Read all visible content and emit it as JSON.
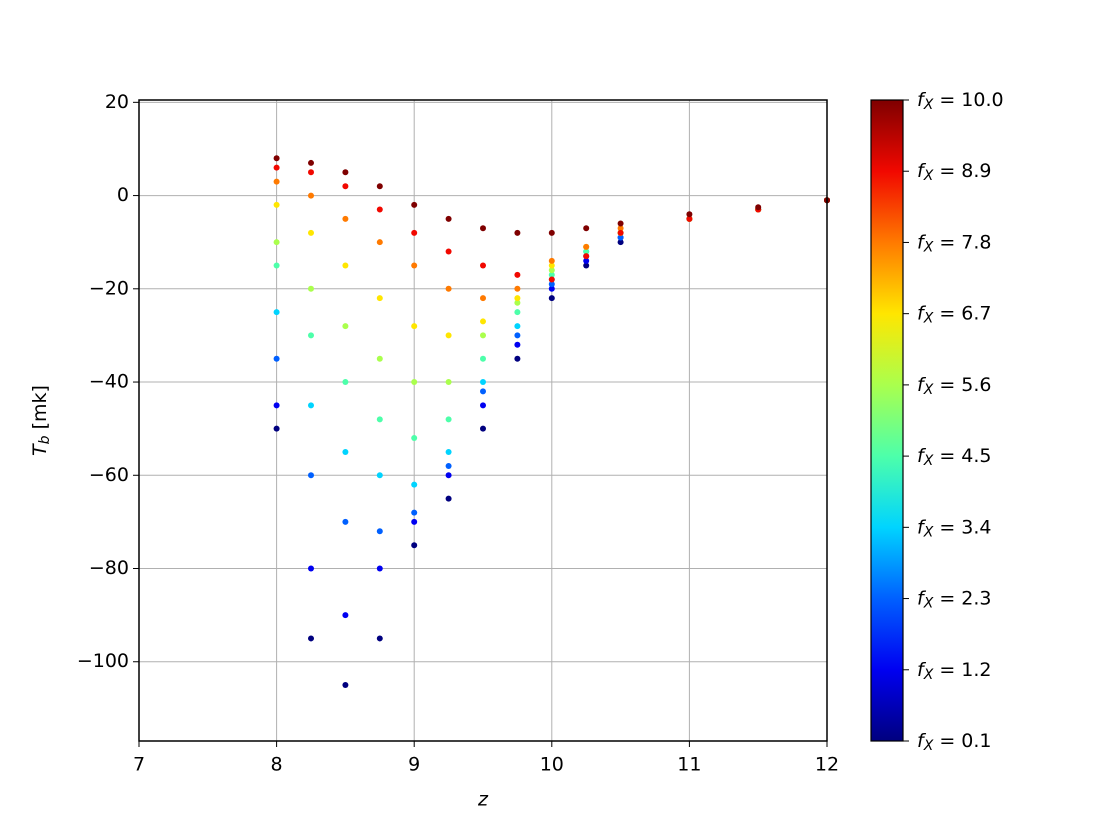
{
  "chart_data": {
    "type": "scatter",
    "x_label": "z",
    "y_label": "Tb [mk]",
    "xlim": [
      7,
      12
    ],
    "ylim": [
      -117,
      20.5
    ],
    "xticks": [
      7,
      8,
      9,
      10,
      11,
      12
    ],
    "yticks": [
      -100,
      -80,
      -60,
      -40,
      -20,
      0,
      20
    ],
    "grid": true,
    "series": [
      {
        "color": "#00007f",
        "x": [
          8.0,
          8.25,
          8.5,
          8.75,
          9.0,
          9.25,
          9.5,
          9.75,
          10.0,
          10.25,
          10.5,
          11.0,
          11.5,
          12.0
        ],
        "values": [
          -50,
          -95,
          -105,
          -95,
          -75,
          -65,
          -50,
          -35,
          -22,
          -15,
          -10,
          -5,
          -3,
          -1
        ]
      },
      {
        "color": "#0000f1",
        "x": [
          8.0,
          8.25,
          8.5,
          8.75,
          9.0,
          9.25,
          9.5,
          9.75,
          10.0,
          10.25,
          10.5,
          11.0,
          11.5,
          12.0
        ],
        "values": [
          -45,
          -80,
          -90,
          -80,
          -70,
          -60,
          -45,
          -32,
          -20,
          -14,
          -9,
          -5,
          -3,
          -1
        ]
      },
      {
        "color": "#0060ff",
        "x": [
          8.0,
          8.25,
          8.5,
          8.75,
          9.0,
          9.25,
          9.5,
          9.75,
          10.0,
          10.25,
          10.5,
          11.0,
          11.5,
          12.0
        ],
        "values": [
          -35,
          -60,
          -70,
          -72,
          -68,
          -58,
          -42,
          -30,
          -19,
          -13,
          -9,
          -5,
          -3,
          -1
        ]
      },
      {
        "color": "#00d4ff",
        "x": [
          8.0,
          8.25,
          8.5,
          8.75,
          9.0,
          9.25,
          9.5,
          9.75,
          10.0,
          10.25,
          10.5,
          11.0,
          11.5,
          12.0
        ],
        "values": [
          -25,
          -45,
          -55,
          -60,
          -62,
          -55,
          -40,
          -28,
          -18,
          -12,
          -8,
          -5,
          -3,
          -1
        ]
      },
      {
        "color": "#4dffaa",
        "x": [
          8.0,
          8.25,
          8.5,
          8.75,
          9.0,
          9.25,
          9.5,
          9.75,
          10.0,
          10.25,
          10.5,
          11.0,
          11.5,
          12.0
        ],
        "values": [
          -15,
          -30,
          -40,
          -48,
          -52,
          -48,
          -35,
          -25,
          -17,
          -12,
          -8,
          -5,
          -3,
          -1
        ]
      },
      {
        "color": "#aaff4d",
        "x": [
          8.0,
          8.25,
          8.5,
          8.75,
          9.0,
          9.25,
          9.5,
          9.75,
          10.0,
          10.25,
          10.5,
          11.0,
          11.5,
          12.0
        ],
        "values": [
          -10,
          -20,
          -28,
          -35,
          -40,
          -40,
          -30,
          -23,
          -16,
          -11,
          -8,
          -5,
          -3,
          -1
        ]
      },
      {
        "color": "#ffe600",
        "x": [
          8.0,
          8.25,
          8.5,
          8.75,
          9.0,
          9.25,
          9.5,
          9.75,
          10.0,
          10.25,
          10.5,
          11.0,
          11.5,
          12.0
        ],
        "values": [
          -2,
          -8,
          -15,
          -22,
          -28,
          -30,
          -27,
          -22,
          -15,
          -11,
          -8,
          -5,
          -3,
          -1
        ]
      },
      {
        "color": "#ff7a00",
        "x": [
          8.0,
          8.25,
          8.5,
          8.75,
          9.0,
          9.25,
          9.5,
          9.75,
          10.0,
          10.25,
          10.5,
          11.0,
          11.5,
          12.0
        ],
        "values": [
          3,
          0,
          -5,
          -10,
          -15,
          -20,
          -22,
          -20,
          -14,
          -11,
          -7,
          -5,
          -3,
          -1
        ]
      },
      {
        "color": "#f10800",
        "x": [
          8.0,
          8.25,
          8.5,
          8.75,
          9.0,
          9.25,
          9.5,
          9.75,
          10.0,
          10.25,
          10.5,
          11.0,
          11.5,
          12.0
        ],
        "values": [
          6,
          5,
          2,
          -3,
          -8,
          -12,
          -15,
          -17,
          -18,
          -13,
          -8,
          -5,
          -3,
          -1
        ]
      },
      {
        "color": "#7f0000",
        "x": [
          8.0,
          8.25,
          8.5,
          8.75,
          9.0,
          9.25,
          9.5,
          9.75,
          10.0,
          10.25,
          10.5,
          11.0,
          11.5,
          12.0
        ],
        "values": [
          8,
          7,
          5,
          2,
          -2,
          -5,
          -7,
          -8,
          -8,
          -7,
          -6,
          -4,
          -2.5,
          -1
        ]
      }
    ],
    "colorbar": {
      "lim": [
        0.1,
        10.0
      ],
      "ticks": [
        {
          "value": 0.1,
          "label": "fX = 0.1"
        },
        {
          "value": 1.2,
          "label": "fX = 1.2"
        },
        {
          "value": 2.3,
          "label": "fX = 2.3"
        },
        {
          "value": 3.4,
          "label": "fX = 3.4"
        },
        {
          "value": 4.5,
          "label": "fX = 4.5"
        },
        {
          "value": 5.6,
          "label": "fX = 5.6"
        },
        {
          "value": 6.7,
          "label": "fX = 6.7"
        },
        {
          "value": 7.8,
          "label": "fX = 7.8"
        },
        {
          "value": 8.9,
          "label": "fX = 8.9"
        },
        {
          "value": 10.0,
          "label": "fX = 10.0"
        }
      ]
    }
  }
}
